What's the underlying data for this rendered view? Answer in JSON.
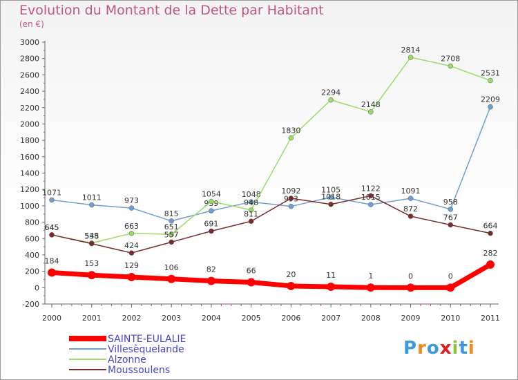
{
  "title": "Evolution du Montant de la Dette par Habitant",
  "subtitle": "(en €)",
  "logo_text": "Proxiti",
  "chart_data": {
    "type": "line",
    "x": [
      "2000",
      "2001",
      "2002",
      "2003",
      "2004",
      "2005",
      "2006",
      "2007",
      "2008",
      "2009",
      "2010",
      "2011"
    ],
    "ylim": [
      -200,
      3000
    ],
    "yticks": [
      -200,
      0,
      200,
      400,
      600,
      800,
      1000,
      1200,
      1400,
      1600,
      1800,
      2000,
      2200,
      2400,
      2600,
      2800,
      3000
    ],
    "grid": false,
    "legend_position": "bottom",
    "series": [
      {
        "name": "SAINTE-EULALIE",
        "color": "#ff0000",
        "values": [
          184,
          153,
          129,
          106,
          82,
          66,
          20,
          11,
          1,
          0,
          0,
          282
        ],
        "emphasis": true
      },
      {
        "name": "Villesèquelande",
        "color": "#6f9fcf",
        "values": [
          1071,
          1011,
          973,
          815,
          939,
          1048,
          993,
          1105,
          1015,
          1091,
          958,
          2209
        ]
      },
      {
        "name": "Alzonne",
        "color": "#99dd66",
        "values": [
          645,
          545,
          663,
          651,
          1054,
          948,
          1830,
          2294,
          2148,
          2814,
          2708,
          2531
        ]
      },
      {
        "name": "Moussoulens",
        "color": "#7a2b2b",
        "values": [
          645,
          538,
          424,
          557,
          691,
          811,
          1092,
          1018,
          1122,
          872,
          767,
          664
        ]
      }
    ]
  }
}
